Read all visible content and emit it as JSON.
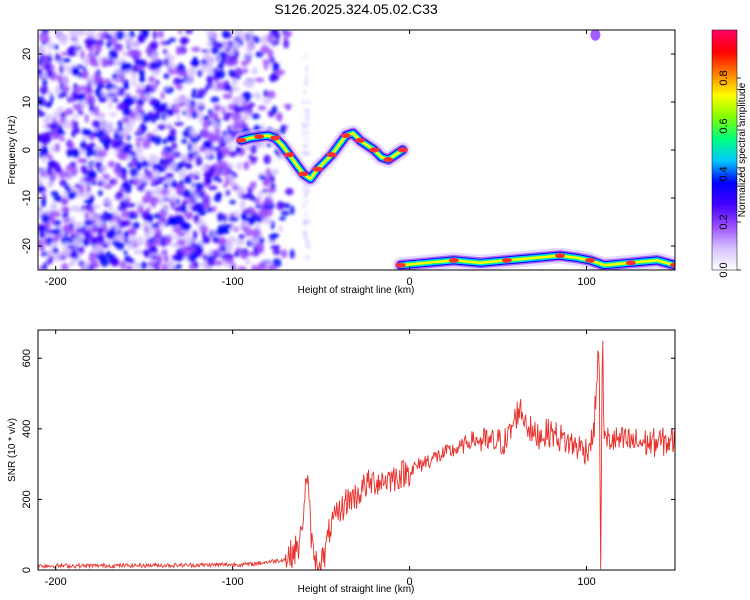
{
  "figure_title": "S126.2025.324.05.02.C33",
  "chart_data": [
    {
      "type": "heatmap",
      "title": "S126.2025.324.05.02.C33",
      "xlabel": "Height of straight line (km)",
      "ylabel": "Frequency (Hz)",
      "xlim": [
        -210,
        150
      ],
      "ylim": [
        -25,
        25
      ],
      "xticks": [
        -200,
        -100,
        0,
        100
      ],
      "yticks": [
        -20,
        -10,
        0,
        10,
        20
      ],
      "colorbar": {
        "label": "Normalized spectral amplitude",
        "range": [
          0,
          1
        ],
        "ticks": [
          0.0,
          0.2,
          0.4,
          0.6,
          0.8
        ],
        "tick_labels": [
          "0.0",
          "0.2",
          "0.4",
          "0.6",
          "0.8"
        ],
        "colors": [
          "#ffffff",
          "#d6c2ff",
          "#9a4dff",
          "#4400ff",
          "#0000ff",
          "#00c8ff",
          "#00ff80",
          "#80ff00",
          "#ffff00",
          "#ff8000",
          "#ff0000",
          "#ff0066"
        ]
      },
      "noise_region": {
        "x": [
          -210,
          -65
        ],
        "y": [
          -25,
          25
        ],
        "level": 0.28
      },
      "ridge_upper": {
        "x": [
          -95,
          -90,
          -85,
          -80,
          -76,
          -72,
          -68,
          -64,
          -60,
          -56,
          -52,
          -48,
          -44,
          -40,
          -36,
          -32,
          -28,
          -24,
          -20,
          -16,
          -12,
          -8,
          -4
        ],
        "y": [
          2,
          2.5,
          2.8,
          3,
          2.5,
          1,
          -1,
          -3,
          -5,
          -6,
          -4,
          -2.5,
          -1,
          1,
          3,
          3.5,
          2,
          1,
          0,
          -1.5,
          -2,
          -1,
          0
        ]
      },
      "ridge_lower": {
        "x": [
          -5,
          10,
          25,
          40,
          55,
          70,
          85,
          95,
          102,
          110,
          125,
          140,
          150
        ],
        "y": [
          -24,
          -23.5,
          -23,
          -23.5,
          -23,
          -22.5,
          -22,
          -22.5,
          -23,
          -24,
          -23.5,
          -23,
          -24
        ]
      }
    },
    {
      "type": "line",
      "title": "",
      "xlabel": "Height of straight line (km)",
      "ylabel": "SNR (10 * v/v)",
      "xlim": [
        -210,
        150
      ],
      "ylim": [
        0,
        680
      ],
      "xticks": [
        -200,
        -100,
        0,
        100
      ],
      "yticks": [
        0,
        200,
        400,
        600
      ],
      "series": [
        {
          "name": "SNR",
          "color": "#e8312c",
          "x": [
            -210,
            -180,
            -150,
            -120,
            -90,
            -70,
            -62,
            -58,
            -55,
            -52,
            -48,
            -45,
            -40,
            -35,
            -30,
            -25,
            -20,
            -10,
            0,
            10,
            20,
            30,
            35,
            45,
            55,
            62,
            70,
            80,
            90,
            100,
            104,
            107,
            108,
            109,
            110,
            112,
            120,
            135,
            150
          ],
          "y": [
            12,
            12,
            13,
            14,
            16,
            30,
            70,
            270,
            60,
            10,
            40,
            120,
            160,
            200,
            210,
            240,
            250,
            260,
            280,
            310,
            330,
            350,
            370,
            360,
            365,
            460,
            380,
            390,
            360,
            340,
            380,
            650,
            20,
            680,
            360,
            370,
            365,
            360,
            365
          ],
          "noise_amplitude": 30
        }
      ]
    }
  ]
}
